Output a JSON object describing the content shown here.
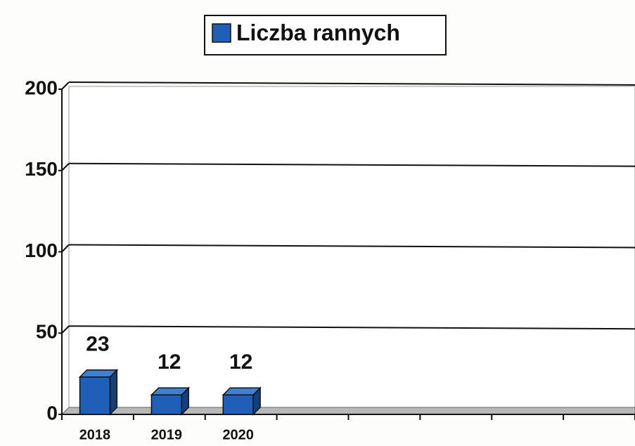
{
  "chart_data": {
    "type": "bar3d",
    "legend": "Liczba rannych",
    "categories": [
      "2018",
      "2019",
      "2020",
      null,
      null,
      null,
      null,
      null
    ],
    "values": [
      23,
      12,
      12,
      null,
      null,
      null,
      null,
      null
    ],
    "color": "#1f5fb8",
    "ylim": [
      0,
      200
    ],
    "yticks": [
      0,
      50,
      100,
      150,
      200
    ],
    "grid": true
  }
}
